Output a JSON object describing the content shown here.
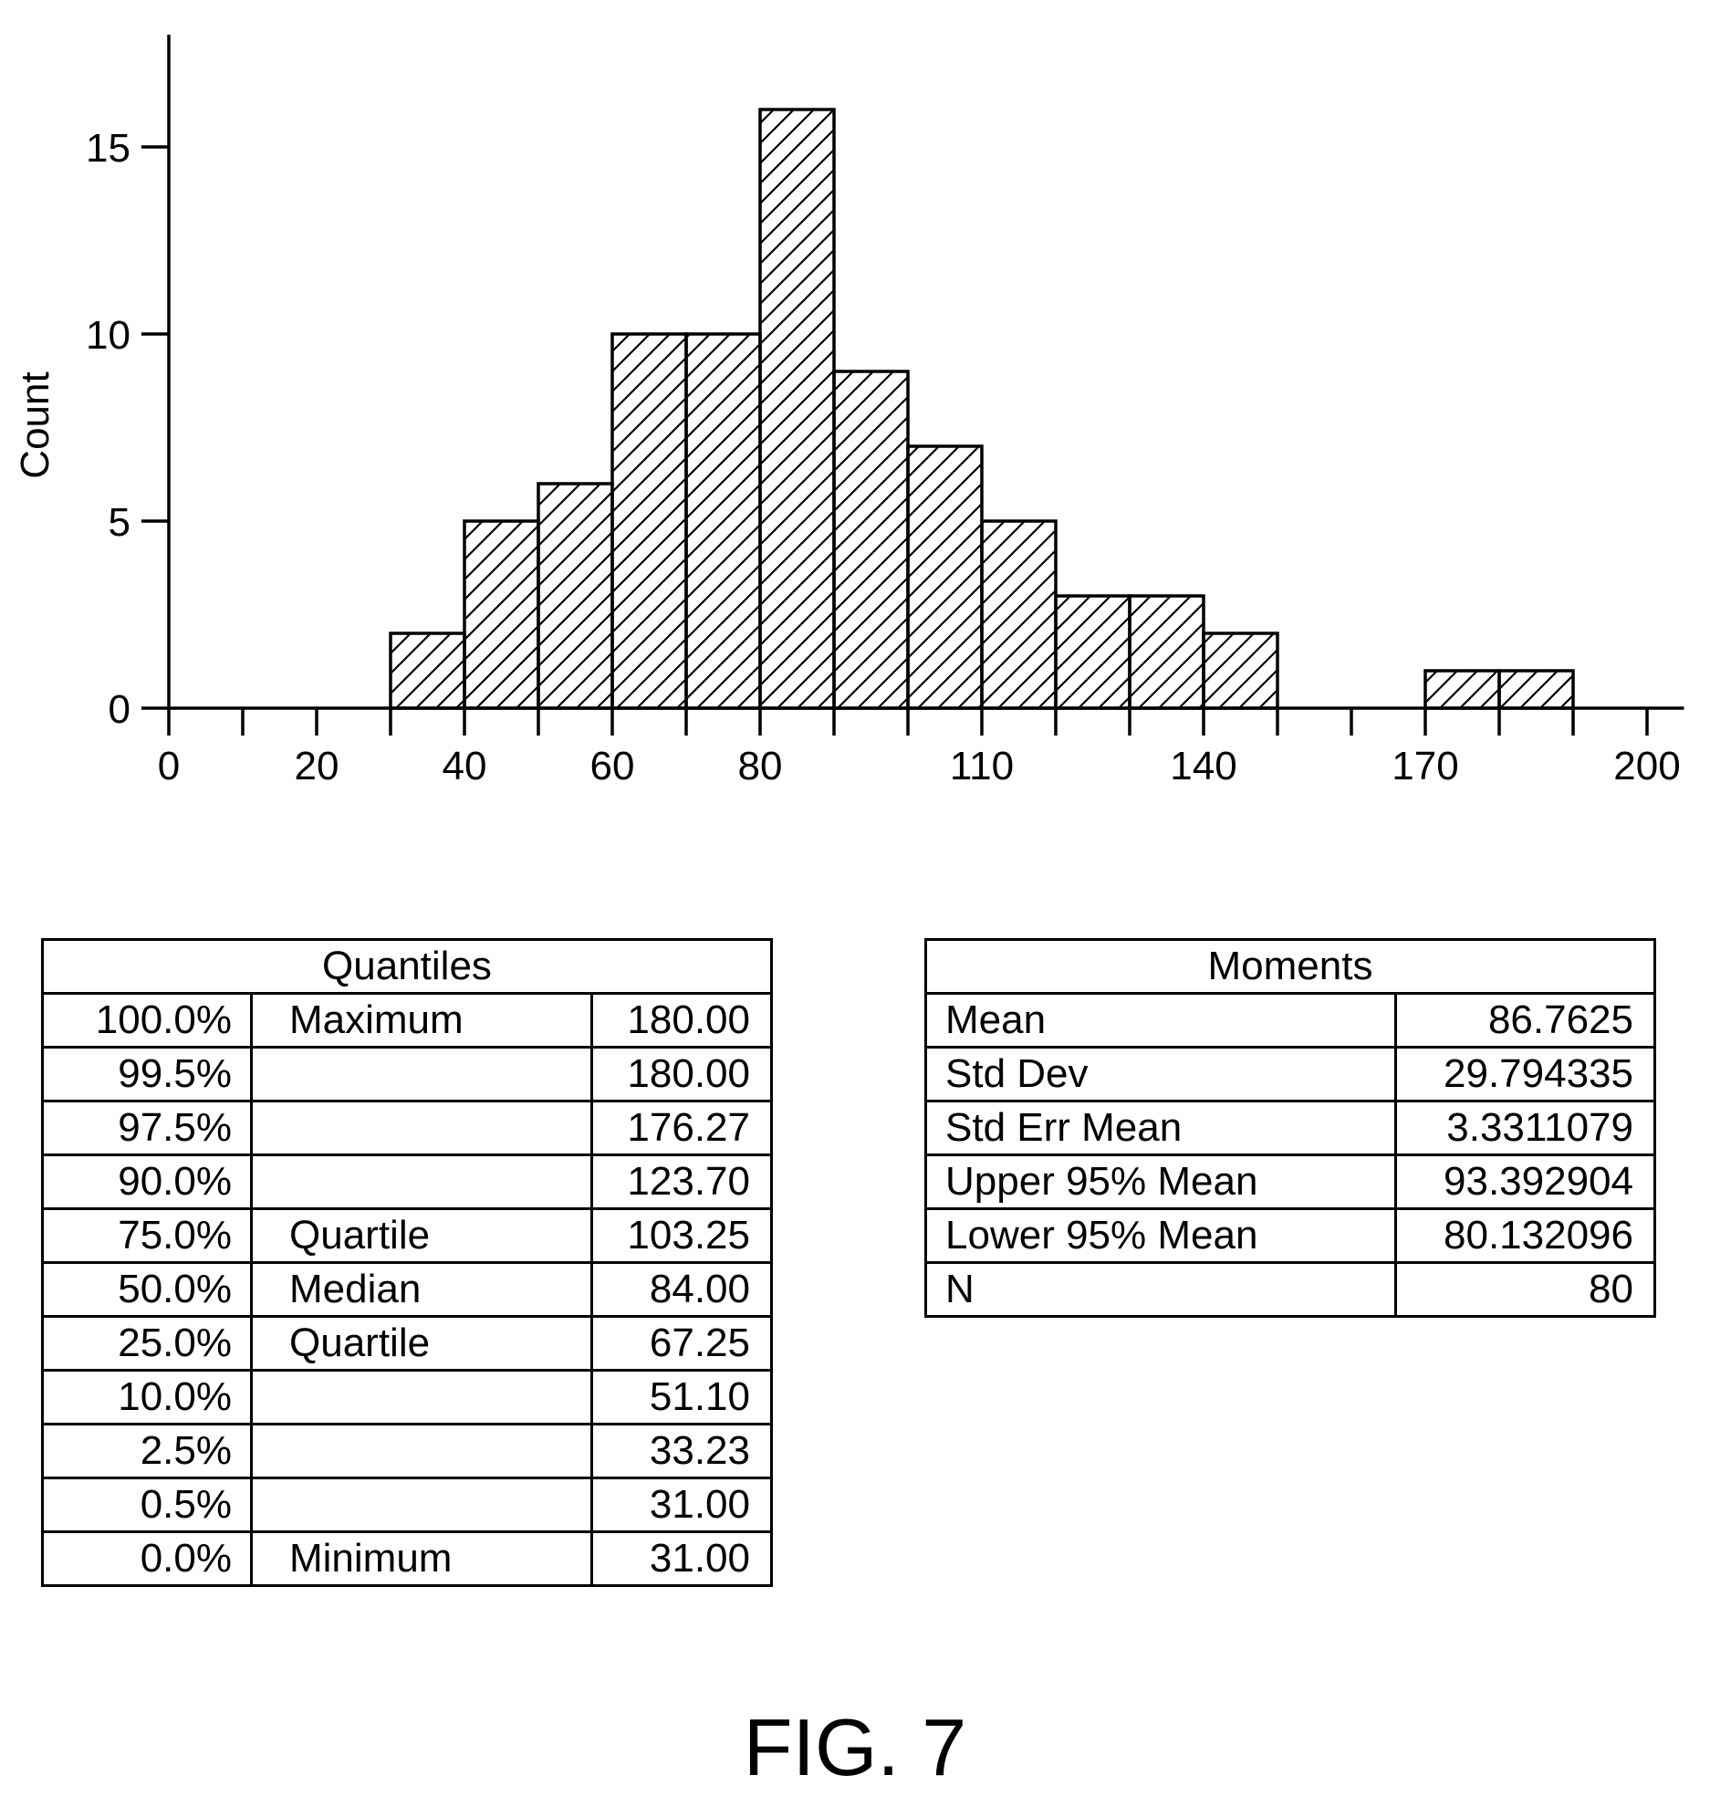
{
  "chart_data": {
    "type": "bar",
    "title": "",
    "xlabel": "",
    "ylabel": "Count",
    "xlim": [
      0,
      205
    ],
    "ylim": [
      0,
      18
    ],
    "grid": false,
    "bin_width": 10,
    "bins": [
      {
        "start": 30,
        "count": 2
      },
      {
        "start": 40,
        "count": 5
      },
      {
        "start": 50,
        "count": 6
      },
      {
        "start": 60,
        "count": 10
      },
      {
        "start": 70,
        "count": 10
      },
      {
        "start": 80,
        "count": 16
      },
      {
        "start": 90,
        "count": 9
      },
      {
        "start": 100,
        "count": 7
      },
      {
        "start": 110,
        "count": 5
      },
      {
        "start": 120,
        "count": 3
      },
      {
        "start": 130,
        "count": 3
      },
      {
        "start": 140,
        "count": 2
      },
      {
        "start": 170,
        "count": 1
      },
      {
        "start": 180,
        "count": 1
      }
    ],
    "x_ticks": [
      0,
      10,
      20,
      30,
      40,
      50,
      60,
      70,
      80,
      90,
      100,
      110,
      120,
      130,
      140,
      150,
      160,
      170,
      180,
      190,
      200
    ],
    "x_tick_labels": [
      {
        "value": 0,
        "label": "0"
      },
      {
        "value": 20,
        "label": "20"
      },
      {
        "value": 40,
        "label": "40"
      },
      {
        "value": 60,
        "label": "60"
      },
      {
        "value": 80,
        "label": "80"
      },
      {
        "value": 110,
        "label": "110"
      },
      {
        "value": 140,
        "label": "140"
      },
      {
        "value": 170,
        "label": "170"
      },
      {
        "value": 200,
        "label": "200"
      }
    ],
    "y_ticks": [
      {
        "value": 0,
        "label": "0"
      },
      {
        "value": 5,
        "label": "5"
      },
      {
        "value": 10,
        "label": "10"
      },
      {
        "value": 15,
        "label": "15"
      }
    ]
  },
  "quantiles": {
    "title": "Quantiles",
    "rows": [
      {
        "pct": "100.0%",
        "label": "Maximum",
        "value": "180.00"
      },
      {
        "pct": "99.5%",
        "label": "",
        "value": "180.00"
      },
      {
        "pct": "97.5%",
        "label": "",
        "value": "176.27"
      },
      {
        "pct": "90.0%",
        "label": "",
        "value": "123.70"
      },
      {
        "pct": "75.0%",
        "label": "Quartile",
        "value": "103.25"
      },
      {
        "pct": "50.0%",
        "label": "Median",
        "value": "84.00"
      },
      {
        "pct": "25.0%",
        "label": "Quartile",
        "value": "67.25"
      },
      {
        "pct": "10.0%",
        "label": "",
        "value": "51.10"
      },
      {
        "pct": "2.5%",
        "label": "",
        "value": "33.23"
      },
      {
        "pct": "0.5%",
        "label": "",
        "value": "31.00"
      },
      {
        "pct": "0.0%",
        "label": "Minimum",
        "value": "31.00"
      }
    ]
  },
  "moments": {
    "title": "Moments",
    "rows": [
      {
        "label": "Mean",
        "value": "86.7625"
      },
      {
        "label": "Std Dev",
        "value": "29.794335"
      },
      {
        "label": "Std Err Mean",
        "value": "3.3311079"
      },
      {
        "label": "Upper 95% Mean",
        "value": "93.392904"
      },
      {
        "label": "Lower 95% Mean",
        "value": "80.132096"
      },
      {
        "label": "N",
        "value": "80"
      }
    ]
  },
  "caption": "FIG. 7"
}
